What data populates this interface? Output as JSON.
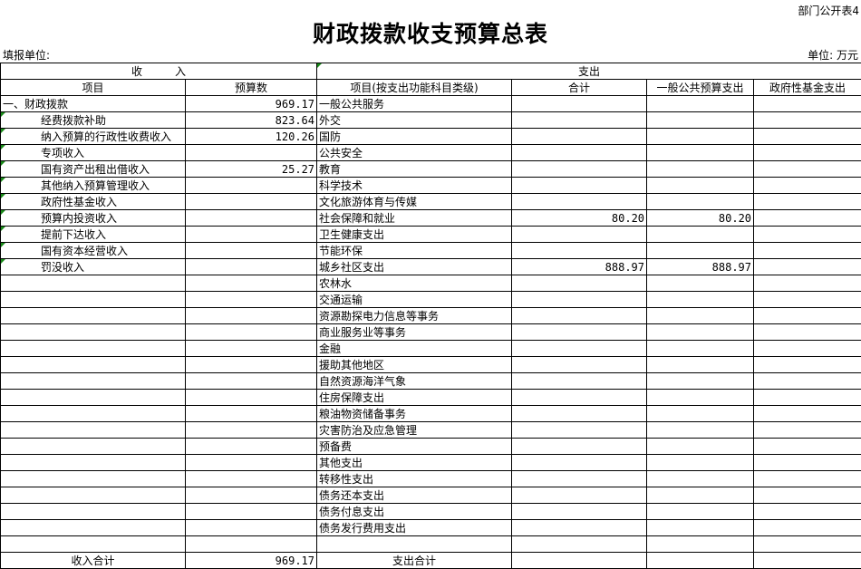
{
  "form_no": "部门公开表4",
  "title": "财政拨款收支预算总表",
  "fill_unit_label": "填报单位:",
  "unit_label": "单位: 万元",
  "header": {
    "income": "收　　　入",
    "expense": "支出",
    "income_item": "项目",
    "income_amount": "预算数",
    "expense_item": "项目(按支出功能科目类级)",
    "total": "合计",
    "general_budget": "一般公共预算支出",
    "gov_fund": "政府性基金支出"
  },
  "income_rows": [
    {
      "item": "一、财政拨款",
      "amount": "969.17"
    },
    {
      "item": "经费拨款补助",
      "amount": "823.64"
    },
    {
      "item": "纳入预算的行政性收费收入",
      "amount": "120.26"
    },
    {
      "item": "专项收入",
      "amount": ""
    },
    {
      "item": "国有资产出租出借收入",
      "amount": "25.27"
    },
    {
      "item": "其他纳入预算管理收入",
      "amount": ""
    },
    {
      "item": "政府性基金收入",
      "amount": ""
    },
    {
      "item": "预算内投资收入",
      "amount": ""
    },
    {
      "item": "提前下达收入",
      "amount": ""
    },
    {
      "item": "国有资本经营收入",
      "amount": ""
    },
    {
      "item": "罚没收入",
      "amount": ""
    }
  ],
  "expense_rows": [
    {
      "item": "一般公共服务",
      "total": "",
      "general": "",
      "fund": ""
    },
    {
      "item": "外交",
      "total": "",
      "general": "",
      "fund": ""
    },
    {
      "item": "国防",
      "total": "",
      "general": "",
      "fund": ""
    },
    {
      "item": "公共安全",
      "total": "",
      "general": "",
      "fund": ""
    },
    {
      "item": "教育",
      "total": "",
      "general": "",
      "fund": ""
    },
    {
      "item": "科学技术",
      "total": "",
      "general": "",
      "fund": ""
    },
    {
      "item": "文化旅游体育与传媒",
      "total": "",
      "general": "",
      "fund": ""
    },
    {
      "item": "社会保障和就业",
      "total": "80.20",
      "general": "80.20",
      "fund": ""
    },
    {
      "item": "卫生健康支出",
      "total": "",
      "general": "",
      "fund": ""
    },
    {
      "item": "节能环保",
      "total": "",
      "general": "",
      "fund": ""
    },
    {
      "item": "城乡社区支出",
      "total": "888.97",
      "general": "888.97",
      "fund": ""
    },
    {
      "item": "农林水",
      "total": "",
      "general": "",
      "fund": ""
    },
    {
      "item": "交通运输",
      "total": "",
      "general": "",
      "fund": ""
    },
    {
      "item": "资源勘探电力信息等事务",
      "total": "",
      "general": "",
      "fund": ""
    },
    {
      "item": "商业服务业等事务",
      "total": "",
      "general": "",
      "fund": ""
    },
    {
      "item": "金融",
      "total": "",
      "general": "",
      "fund": ""
    },
    {
      "item": "援助其他地区",
      "total": "",
      "general": "",
      "fund": ""
    },
    {
      "item": "自然资源海洋气象",
      "total": "",
      "general": "",
      "fund": ""
    },
    {
      "item": "住房保障支出",
      "total": "",
      "general": "",
      "fund": ""
    },
    {
      "item": "粮油物资储备事务",
      "total": "",
      "general": "",
      "fund": ""
    },
    {
      "item": "灾害防治及应急管理",
      "total": "",
      "general": "",
      "fund": ""
    },
    {
      "item": "预备费",
      "total": "",
      "general": "",
      "fund": ""
    },
    {
      "item": "其他支出",
      "total": "",
      "general": "",
      "fund": ""
    },
    {
      "item": "转移性支出",
      "total": "",
      "general": "",
      "fund": ""
    },
    {
      "item": "债务还本支出",
      "total": "",
      "general": "",
      "fund": ""
    },
    {
      "item": "债务付息支出",
      "total": "",
      "general": "",
      "fund": ""
    },
    {
      "item": "债务发行费用支出",
      "total": "",
      "general": "",
      "fund": ""
    }
  ],
  "totals": {
    "income_label": "收入合计",
    "income_amount": "969.17",
    "expense_label": "支出合计",
    "expense_total": "",
    "expense_general": "",
    "expense_fund": ""
  }
}
